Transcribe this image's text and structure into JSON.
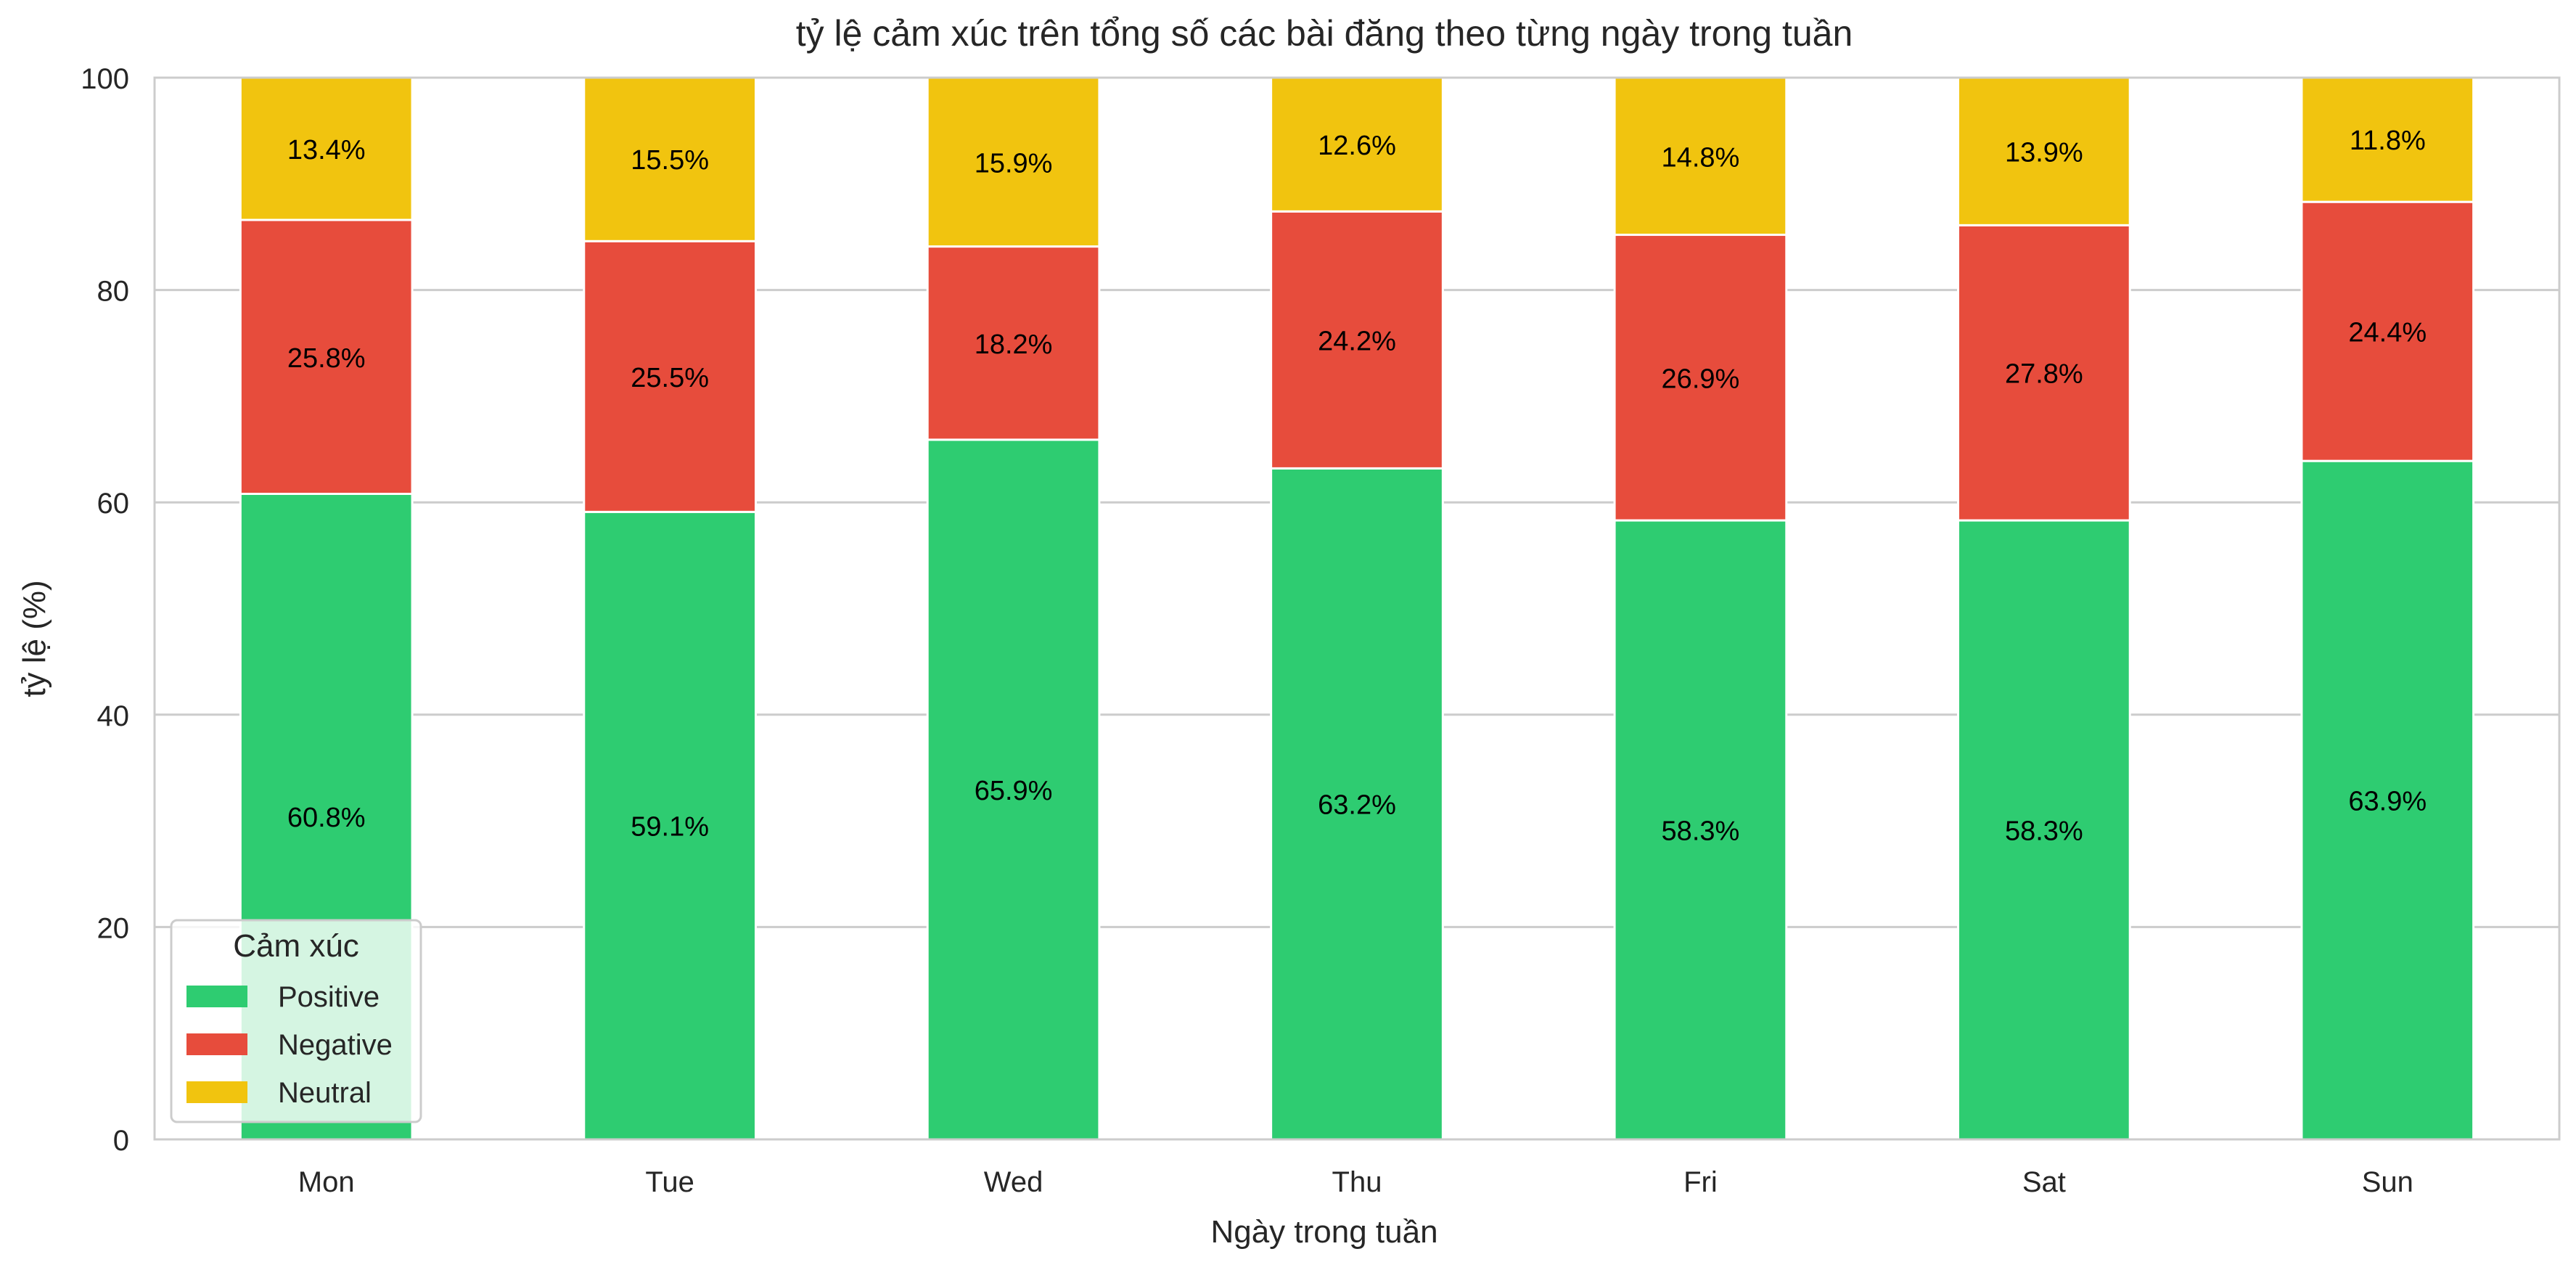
{
  "chart_data": {
    "type": "bar",
    "stacked": true,
    "title": "tỷ lệ cảm xúc trên tổng số các bài đăng theo từng ngày trong tuần",
    "xlabel": "Ngày trong tuần",
    "ylabel": "tỷ lệ (%)",
    "ylim": [
      0,
      100
    ],
    "yticks": [
      0,
      20,
      40,
      60,
      80,
      100
    ],
    "grid": "horizontal",
    "categories": [
      "Mon",
      "Tue",
      "Wed",
      "Thu",
      "Fri",
      "Sat",
      "Sun"
    ],
    "series": [
      {
        "name": "Positive",
        "color": "#2ecc71",
        "values": [
          60.8,
          59.1,
          65.9,
          63.2,
          58.3,
          58.3,
          63.9
        ],
        "labels": [
          "60.8%",
          "59.1%",
          "65.9%",
          "63.2%",
          "58.3%",
          "58.3%",
          "63.9%"
        ]
      },
      {
        "name": "Negative",
        "color": "#e74c3c",
        "values": [
          25.8,
          25.5,
          18.2,
          24.2,
          26.9,
          27.8,
          24.4
        ],
        "labels": [
          "25.8%",
          "25.5%",
          "18.2%",
          "24.2%",
          "26.9%",
          "27.8%",
          "24.4%"
        ]
      },
      {
        "name": "Neutral",
        "color": "#f1c40f",
        "values": [
          13.4,
          15.5,
          15.9,
          12.6,
          14.8,
          13.9,
          11.8
        ],
        "labels": [
          "13.4%",
          "15.5%",
          "15.9%",
          "12.6%",
          "14.8%",
          "13.9%",
          "11.8%"
        ]
      }
    ],
    "legend": {
      "title": "Cảm xúc",
      "position": "lower-left"
    }
  }
}
